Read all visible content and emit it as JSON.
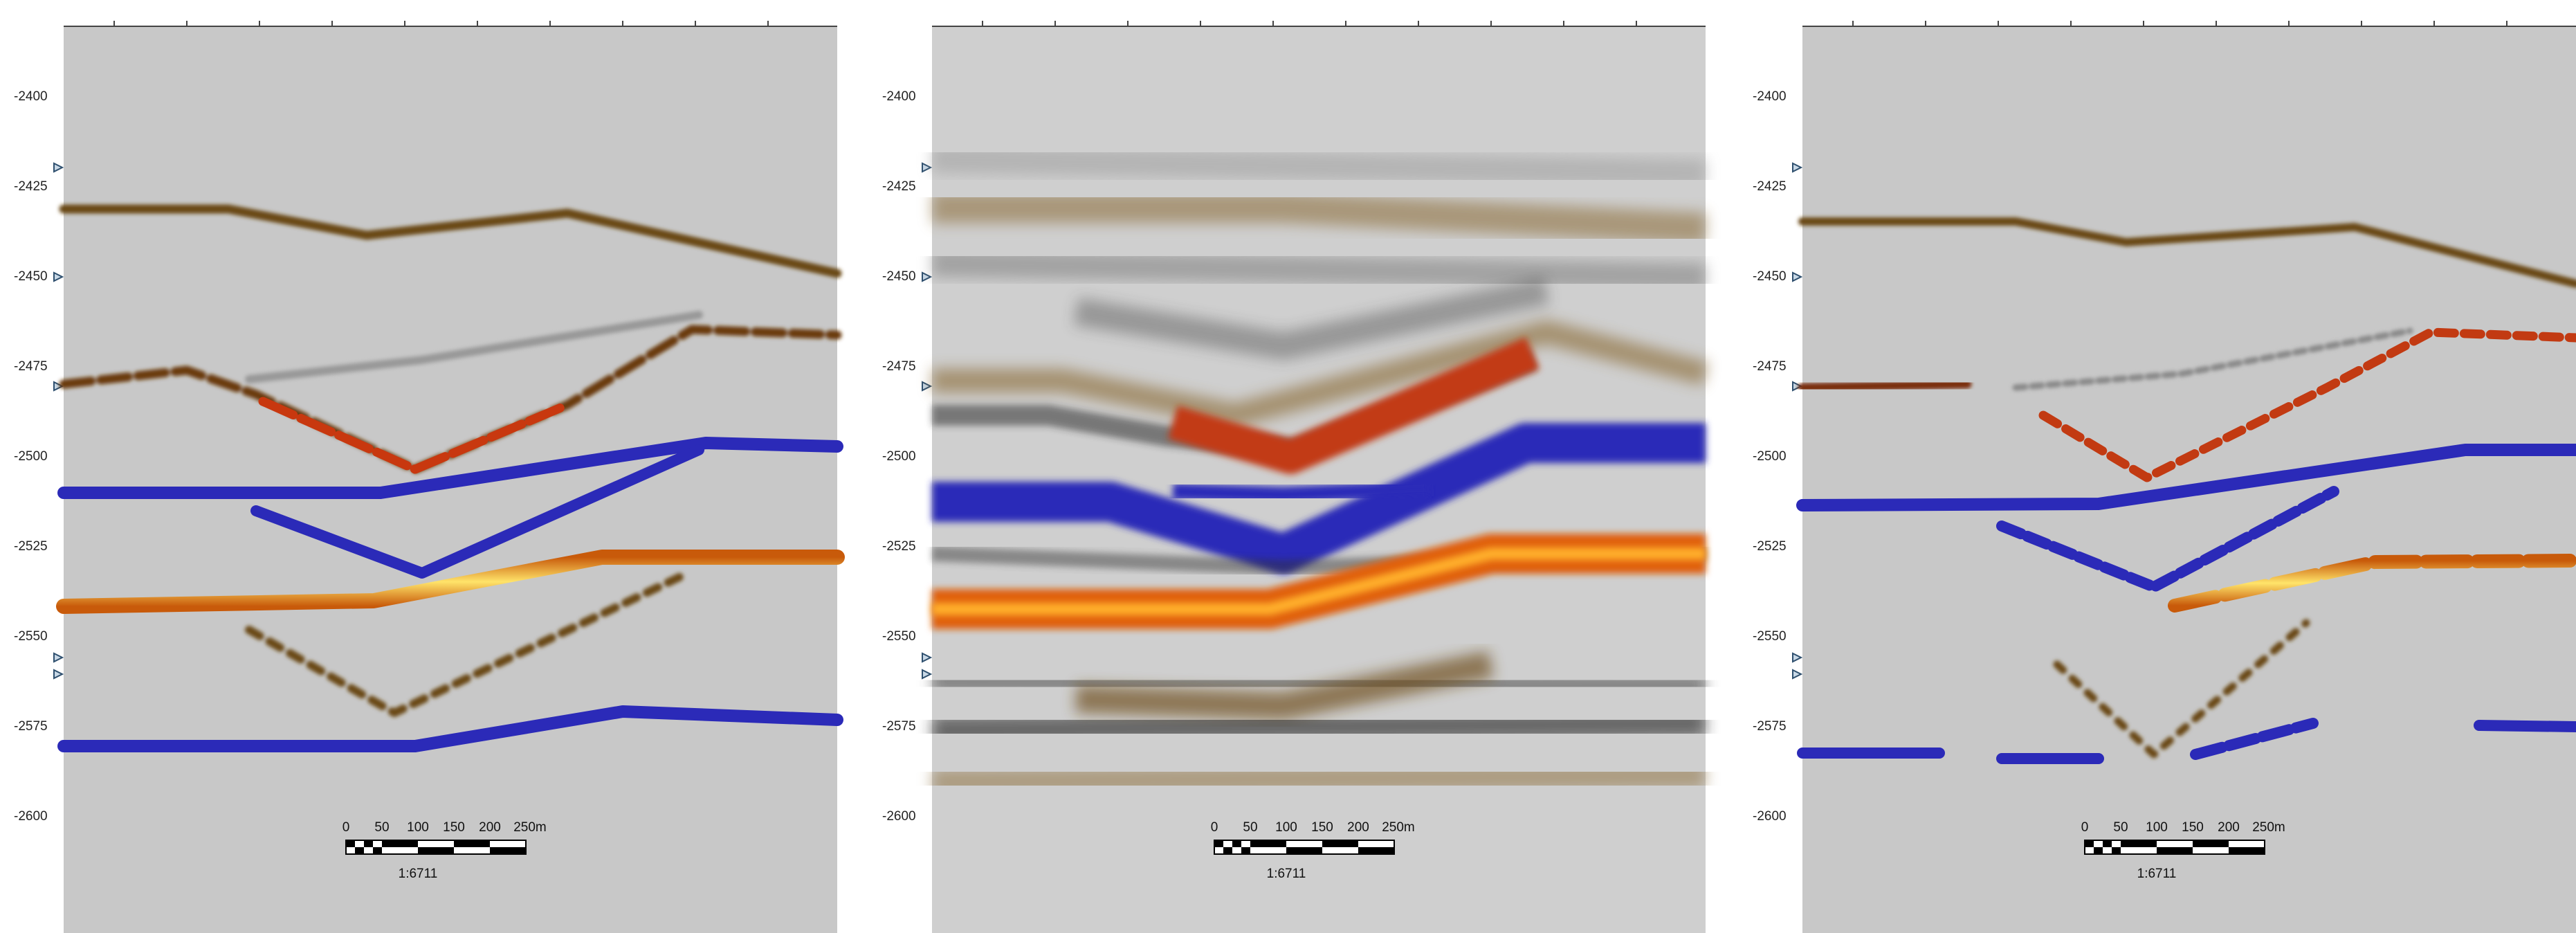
{
  "colors": {
    "background": "#c8c8c8",
    "brown": "#6b4a17",
    "gray": "#8a8a8a",
    "red": "#c23a12",
    "blue": "#2b2ab8",
    "light_blue": "#a8d8f2",
    "orange": "#f08a10",
    "yellow": "#ffd43a",
    "marker": "#2e4f6e"
  },
  "depth_ticks": [
    "-2400",
    "-2425",
    "-2450",
    "-2475",
    "-2500",
    "-2525",
    "-2550",
    "-2575",
    "-2600"
  ],
  "panels": [
    {
      "name": "panel-left",
      "scale_bar": {
        "labels": [
          "0",
          "50",
          "100",
          "150",
          "200",
          "250m"
        ],
        "ratio": "1:6711"
      }
    },
    {
      "name": "panel-middle",
      "scale_bar": {
        "labels": [
          "0",
          "50",
          "100",
          "150",
          "200",
          "250m"
        ],
        "ratio": "1:6711"
      }
    },
    {
      "name": "panel-right",
      "scale_bar": {
        "labels": [
          "0",
          "50",
          "100",
          "150",
          "200",
          "250m"
        ],
        "ratio": "1:6711"
      }
    }
  ]
}
